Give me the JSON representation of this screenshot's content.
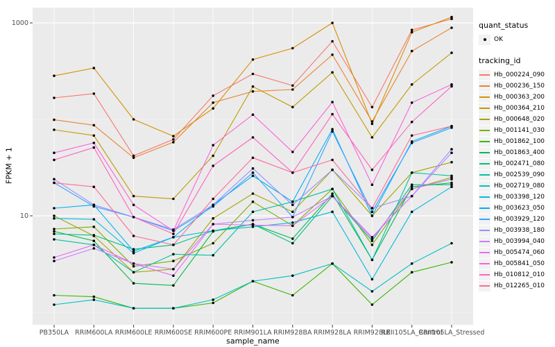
{
  "figure": {
    "background": "#FFFFFF",
    "panel_background": "#EBEBEB",
    "gridline_color": "#FFFFFF",
    "tick_color": "#333333",
    "axis_text_color": "#4D4D4D",
    "point_color": "#000000"
  },
  "legend": {
    "quant_status_title": "quant_status",
    "quant_status_items": [
      {
        "label": "OK",
        "symbol": "black-point"
      }
    ],
    "tracking_id_title": "tracking_id",
    "key_background": "#F2F2F2"
  },
  "chart_data": {
    "type": "line",
    "title": "",
    "xlabel": "sample_name",
    "ylabel": "FPKM + 1",
    "y_scale": "log10",
    "y_ticks": [
      {
        "value": 1000,
        "label": "1000"
      },
      {
        "value": 10,
        "label": "10"
      }
    ],
    "y_minor_breaks": [
      100,
      1
    ],
    "ylim": [
      0.75,
      1450
    ],
    "grid": true,
    "legend_position": "right",
    "marker": "black-point",
    "categories": [
      "PB350LA",
      "RRIM600LA",
      "RRIM600LE",
      "RRIM600SE",
      "RRIM600PE",
      "RRIM901LA",
      "RRIM928BA",
      "RRIM928LA",
      "RRIM928LE",
      "RRII105LA_Control",
      "RRII105LA_Stressed"
    ],
    "series": [
      {
        "name": "Hb_000224_090",
        "color": "#F8766D",
        "values": [
          167,
          185,
          42,
          62,
          176,
          296,
          224,
          645,
          134,
          845,
          1100
        ]
      },
      {
        "name": "Hb_000236_150",
        "color": "#EA8331",
        "values": [
          99,
          87,
          40,
          58,
          149,
          195,
          204,
          468,
          95,
          510,
          890
        ]
      },
      {
        "name": "Hb_000363_200",
        "color": "#D89000",
        "values": [
          283,
          340,
          100,
          67,
          130,
          417,
          546,
          1000,
          90,
          800,
          1150
        ]
      },
      {
        "name": "Hb_000364_210",
        "color": "#C09B00",
        "values": [
          78,
          68,
          16,
          15,
          42,
          219,
          134,
          307,
          65,
          230,
          490
        ]
      },
      {
        "name": "Hb_000648_020",
        "color": "#A3A500",
        "values": [
          10,
          6.2,
          2.6,
          2.8,
          9.4,
          17,
          11,
          30,
          10,
          28,
          36
        ]
      },
      {
        "name": "Hb_001141_030",
        "color": "#7CAE00",
        "values": [
          7.3,
          7.7,
          3.0,
          3.4,
          5.2,
          14,
          7.9,
          19,
          5.0,
          19,
          25
        ]
      },
      {
        "name": "Hb_001862_100",
        "color": "#39B600",
        "values": [
          1.5,
          1.45,
          1.1,
          1.1,
          1.25,
          2.1,
          1.5,
          3.2,
          1.2,
          2.6,
          3.3
        ]
      },
      {
        "name": "Hb_001863_400",
        "color": "#00BB4E",
        "values": [
          6.9,
          5.5,
          2.0,
          1.9,
          6.9,
          8.2,
          5.8,
          17,
          3.5,
          20,
          22
        ]
      },
      {
        "name": "Hb_002471_080",
        "color": "#00BF7D",
        "values": [
          6.5,
          6.3,
          4.5,
          5.0,
          7.0,
          8.2,
          5.2,
          16,
          5.5,
          21,
          21
        ]
      },
      {
        "name": "Hb_002539_090",
        "color": "#00C1A3",
        "values": [
          5.7,
          5.0,
          2.6,
          4.0,
          3.9,
          11,
          14,
          19,
          3.5,
          28,
          26
        ]
      },
      {
        "name": "Hb_002719_080",
        "color": "#00BFC4",
        "values": [
          1.2,
          1.35,
          1.1,
          1.1,
          1.35,
          2.1,
          2.4,
          3.2,
          1.65,
          3.2,
          5.2
        ]
      },
      {
        "name": "Hb_003398_120",
        "color": "#00BAE0",
        "values": [
          9.4,
          9.2,
          4.1,
          6.0,
          7.0,
          7.7,
          8.5,
          11,
          2.2,
          11,
          20
        ]
      },
      {
        "name": "Hb_003623_050",
        "color": "#00B0F6",
        "values": [
          12,
          13,
          4.3,
          6.0,
          13,
          26,
          14,
          79,
          10,
          59,
          85
        ]
      },
      {
        "name": "Hb_003929_120",
        "color": "#35A2FF",
        "values": [
          22,
          12.5,
          9.7,
          7.0,
          12.5,
          28,
          9.7,
          75,
          11,
          57,
          82
        ]
      },
      {
        "name": "Hb_003938_180",
        "color": "#9590FF",
        "values": [
          24,
          13,
          9.7,
          7.2,
          13,
          31,
          13,
          30,
          12,
          16,
          49
        ]
      },
      {
        "name": "Hb_003994_040",
        "color": "#C77CFF",
        "values": [
          3.4,
          4.6,
          3.2,
          2.8,
          8.2,
          9.0,
          9.7,
          16,
          6.0,
          16,
          45
        ]
      },
      {
        "name": "Hb_005474_060",
        "color": "#E76BF3",
        "values": [
          3.7,
          5.0,
          3.2,
          2.4,
          8.2,
          8.0,
          7.9,
          16,
          5.8,
          19,
          24
        ]
      },
      {
        "name": "Hb_005841_050",
        "color": "#FA62DB",
        "values": [
          45,
          57,
          13,
          7.0,
          54,
          112,
          46,
          151,
          21,
          149,
          230
        ]
      },
      {
        "name": "Hb_010812_010",
        "color": "#FF62BC",
        "values": [
          38,
          51,
          9.7,
          6.5,
          33,
          65,
          28,
          113,
          30,
          94,
          220
        ]
      },
      {
        "name": "Hb_012265_010",
        "color": "#FF6A98",
        "values": [
          22,
          20,
          6.2,
          5.0,
          15,
          40,
          28,
          38,
          12,
          68,
          85
        ]
      }
    ]
  }
}
